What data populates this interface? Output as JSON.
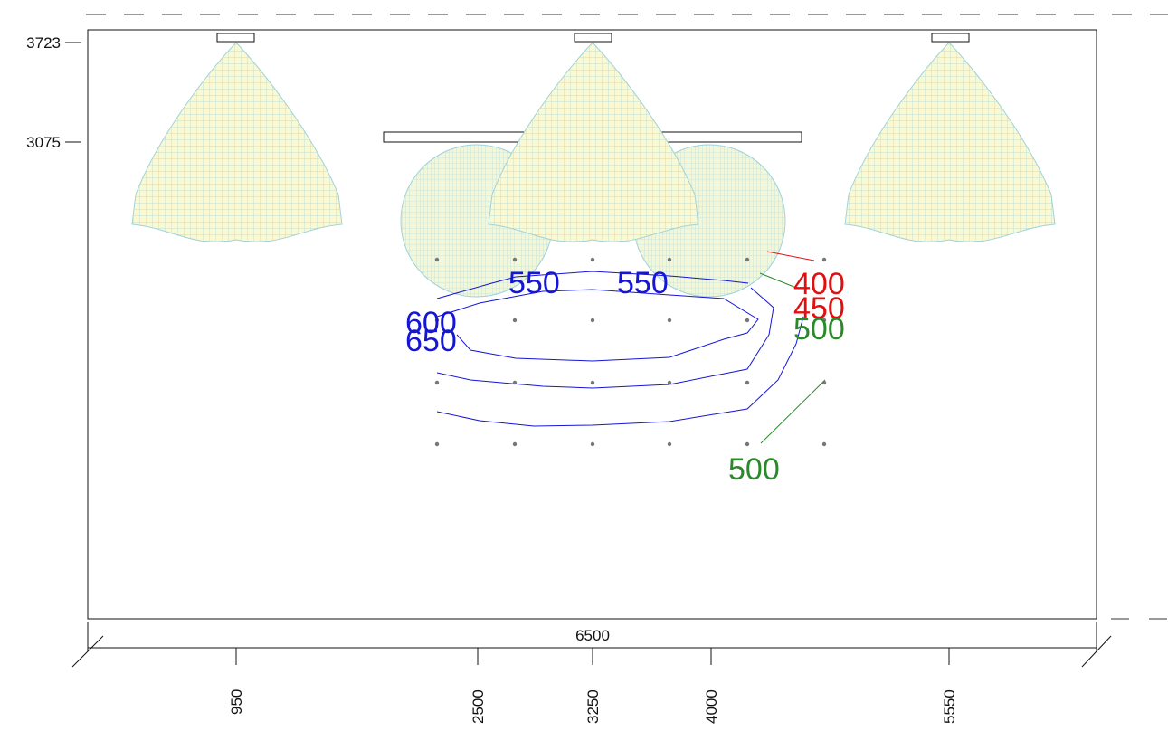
{
  "y_dimensions": [
    {
      "label": "3723"
    },
    {
      "label": "3075"
    }
  ],
  "overall_width_label": "6500",
  "x_dimensions": [
    {
      "label": "950"
    },
    {
      "label": "2500"
    },
    {
      "label": "3250"
    },
    {
      "label": "4000"
    },
    {
      "label": "5550"
    }
  ],
  "contour_labels": [
    {
      "text": "550",
      "color": "#1515d6"
    },
    {
      "text": "550",
      "color": "#1515d6"
    },
    {
      "text": "600",
      "color": "#1515d6"
    },
    {
      "text": "650",
      "color": "#1515d6"
    },
    {
      "text": "400",
      "color": "#e01010"
    },
    {
      "text": "450",
      "color": "#e01010"
    },
    {
      "text": "500",
      "color": "#2a8a2a"
    },
    {
      "text": "500",
      "color": "#2a8a2a"
    }
  ],
  "colors": {
    "luminaire_fill": "#fbf9d2",
    "luminaire_mesh": "#9fd3dd",
    "contour_blue": "#1515d6",
    "contour_red": "#e01010",
    "contour_green": "#2a8a2a",
    "grid_point": "#777777"
  }
}
